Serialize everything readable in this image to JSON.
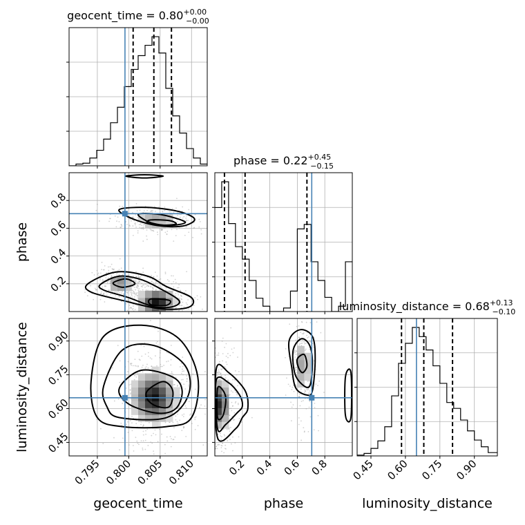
{
  "chart_data": {
    "type": "corner",
    "parameters": [
      "geocent_time",
      "phase",
      "luminosity_distance"
    ],
    "axis_labels": {
      "x": [
        "geocent_time",
        "phase",
        "luminosity_distance"
      ],
      "y": [
        "phase",
        "luminosity_distance"
      ]
    },
    "ranges": {
      "geocent_time": [
        0.7905,
        0.8125
      ],
      "phase": [
        0.0,
        1.0
      ],
      "luminosity_distance": [
        0.39,
        1.0
      ]
    },
    "ticks": {
      "geocent_time": [
        0.795,
        0.8,
        0.805,
        0.81
      ],
      "phase": [
        0.2,
        0.4,
        0.6,
        0.8
      ],
      "luminosity_distance": [
        0.45,
        0.6,
        0.75,
        0.9
      ]
    },
    "tick_labels": {
      "geocent_time": [
        "0.795",
        "0.800",
        "0.805",
        "0.810"
      ],
      "phase": [
        "0.2",
        "0.4",
        "0.6",
        "0.8"
      ],
      "luminosity_distance": [
        "0.45",
        "0.60",
        "0.75",
        "0.90"
      ]
    },
    "truths": {
      "geocent_time": 0.7994,
      "phase": 0.705,
      "luminosity_distance": 0.648
    },
    "titles": {
      "geocent_time": {
        "prefix": "geocent_time = 0.80",
        "plus": "+0.00",
        "minus": "−0.00"
      },
      "phase": {
        "prefix": "phase = 0.22",
        "plus": "+0.45",
        "minus": "−0.15"
      },
      "luminosity_distance": {
        "prefix": "luminosity_distance = 0.68",
        "plus": "+0.13",
        "minus": "−0.10"
      }
    },
    "quantiles": {
      "geocent_time": [
        0.8007,
        0.804,
        0.8068
      ],
      "phase": [
        0.07,
        0.22,
        0.67
      ],
      "luminosity_distance": [
        0.583,
        0.68,
        0.805
      ]
    },
    "histograms": {
      "geocent_time": {
        "edges": [
          0.7905,
          0.7916,
          0.7927,
          0.7938,
          0.7949,
          0.796,
          0.7971,
          0.7982,
          0.7993,
          0.8004,
          0.8015,
          0.8026,
          0.8037,
          0.8048,
          0.8059,
          0.807,
          0.8081,
          0.8092,
          0.8103,
          0.8114,
          0.8125
        ],
        "counts": [
          0,
          2,
          3,
          9,
          18,
          31,
          50,
          68,
          92,
          112,
          128,
          140,
          150,
          131,
          90,
          58,
          38,
          20,
          9,
          2
        ]
      },
      "phase": {
        "edges": [
          0.0,
          0.05,
          0.1,
          0.15,
          0.2,
          0.25,
          0.3,
          0.35,
          0.4,
          0.45,
          0.5,
          0.55,
          0.6,
          0.65,
          0.7,
          0.75,
          0.8,
          0.85,
          0.9,
          0.95,
          1.0
        ],
        "counts": [
          117,
          146,
          99,
          73,
          59,
          35,
          15,
          6,
          0,
          0,
          4,
          23,
          93,
          98,
          56,
          35,
          16,
          0,
          6,
          56
        ]
      },
      "luminosity_distance": {
        "edges": [
          0.39,
          0.42,
          0.45,
          0.48,
          0.51,
          0.54,
          0.57,
          0.6,
          0.63,
          0.66,
          0.69,
          0.72,
          0.75,
          0.78,
          0.81,
          0.84,
          0.87,
          0.9,
          0.93,
          0.96,
          1.0
        ],
        "counts": [
          1,
          3,
          9,
          18,
          35,
          72,
          111,
          135,
          154,
          143,
          127,
          108,
          87,
          64,
          57,
          43,
          30,
          19,
          11,
          4
        ]
      }
    },
    "contours": {
      "phase_vs_geocent_time": [
        [
          [
            0.7995,
            0.975
          ],
          [
            0.8025,
            0.985
          ],
          [
            0.8055,
            0.975
          ],
          [
            0.8025,
            0.962
          ]
        ],
        [
          [
            0.7985,
            0.735
          ],
          [
            0.803,
            0.75
          ],
          [
            0.808,
            0.72
          ],
          [
            0.8105,
            0.665
          ],
          [
            0.8085,
            0.615
          ],
          [
            0.8045,
            0.62
          ],
          [
            0.8005,
            0.67
          ]
        ],
        [
          [
            0.8015,
            0.7
          ],
          [
            0.8045,
            0.702
          ],
          [
            0.8075,
            0.672
          ],
          [
            0.809,
            0.64
          ],
          [
            0.8065,
            0.62
          ],
          [
            0.8035,
            0.64
          ]
        ],
        [
          [
            0.8035,
            0.66
          ],
          [
            0.8065,
            0.655
          ],
          [
            0.8075,
            0.63
          ],
          [
            0.805,
            0.622
          ],
          [
            0.803,
            0.638
          ]
        ],
        [
          [
            0.7935,
            0.2
          ],
          [
            0.798,
            0.285
          ],
          [
            0.803,
            0.255
          ],
          [
            0.806,
            0.18
          ],
          [
            0.81,
            0.1
          ],
          [
            0.8095,
            0.03
          ],
          [
            0.805,
            0.02
          ],
          [
            0.799,
            0.08
          ],
          [
            0.794,
            0.14
          ]
        ],
        [
          [
            0.7955,
            0.195
          ],
          [
            0.7985,
            0.255
          ],
          [
            0.802,
            0.23
          ],
          [
            0.805,
            0.165
          ],
          [
            0.808,
            0.08
          ],
          [
            0.807,
            0.035
          ],
          [
            0.804,
            0.035
          ],
          [
            0.8,
            0.1
          ],
          [
            0.796,
            0.155
          ]
        ],
        [
          [
            0.7975,
            0.205
          ],
          [
            0.7995,
            0.235
          ],
          [
            0.801,
            0.2
          ],
          [
            0.799,
            0.175
          ]
        ],
        [
          [
            0.8035,
            0.09
          ],
          [
            0.8065,
            0.08
          ],
          [
            0.806,
            0.045
          ],
          [
            0.8035,
            0.05
          ]
        ]
      ],
      "luminosity_distance_vs_phase": [
        [
          [
            0.01,
            0.775
          ],
          [
            0.1,
            0.76
          ],
          [
            0.22,
            0.68
          ],
          [
            0.24,
            0.6
          ],
          [
            0.2,
            0.56
          ],
          [
            0.15,
            0.51
          ],
          [
            0.02,
            0.47
          ]
        ],
        [
          [
            0.01,
            0.725
          ],
          [
            0.1,
            0.715
          ],
          [
            0.18,
            0.66
          ],
          [
            0.2,
            0.61
          ],
          [
            0.16,
            0.58
          ],
          [
            0.08,
            0.53
          ],
          [
            0.02,
            0.51
          ]
        ],
        [
          [
            0.02,
            0.69
          ],
          [
            0.06,
            0.68
          ],
          [
            0.08,
            0.64
          ],
          [
            0.06,
            0.57
          ],
          [
            0.02,
            0.56
          ]
        ],
        [
          [
            0.54,
            0.9
          ],
          [
            0.62,
            0.95
          ],
          [
            0.71,
            0.92
          ],
          [
            0.73,
            0.82
          ],
          [
            0.71,
            0.68
          ],
          [
            0.67,
            0.66
          ],
          [
            0.59,
            0.69
          ],
          [
            0.56,
            0.78
          ]
        ],
        [
          [
            0.57,
            0.86
          ],
          [
            0.63,
            0.91
          ],
          [
            0.69,
            0.88
          ],
          [
            0.71,
            0.8
          ],
          [
            0.69,
            0.7
          ],
          [
            0.63,
            0.71
          ],
          [
            0.58,
            0.76
          ]
        ],
        [
          [
            0.6,
            0.82
          ],
          [
            0.65,
            0.84
          ],
          [
            0.67,
            0.79
          ],
          [
            0.64,
            0.76
          ],
          [
            0.61,
            0.78
          ]
        ],
        [
          [
            0.95,
            0.74
          ],
          [
            0.99,
            0.76
          ],
          [
            0.99,
            0.56
          ],
          [
            0.95,
            0.57
          ]
        ]
      ],
      "luminosity_distance_vs_geocent_time": [
        [
          [
            0.794,
            0.72
          ],
          [
            0.796,
            0.92
          ],
          [
            0.802,
            0.97
          ],
          [
            0.808,
            0.91
          ],
          [
            0.811,
            0.74
          ],
          [
            0.81,
            0.56
          ],
          [
            0.806,
            0.52
          ],
          [
            0.799,
            0.52
          ],
          [
            0.795,
            0.56
          ]
        ],
        [
          [
            0.796,
            0.7
          ],
          [
            0.799,
            0.86
          ],
          [
            0.804,
            0.88
          ],
          [
            0.809,
            0.79
          ],
          [
            0.8095,
            0.66
          ],
          [
            0.806,
            0.56
          ],
          [
            0.7985,
            0.56
          ],
          [
            0.7965,
            0.61
          ]
        ],
        [
          [
            0.7985,
            0.69
          ],
          [
            0.802,
            0.77
          ],
          [
            0.807,
            0.74
          ],
          [
            0.8085,
            0.68
          ],
          [
            0.8075,
            0.6
          ],
          [
            0.8045,
            0.58
          ],
          [
            0.8,
            0.62
          ]
        ],
        [
          [
            0.803,
            0.68
          ],
          [
            0.8055,
            0.72
          ],
          [
            0.807,
            0.68
          ],
          [
            0.8065,
            0.61
          ],
          [
            0.8045,
            0.61
          ],
          [
            0.803,
            0.64
          ]
        ]
      ]
    },
    "density_blobs": {
      "phase_vs_geocent_time": [
        {
          "x": 0.8045,
          "y": 0.07,
          "sx": 0.0015,
          "sy": 0.05,
          "w": 1.0
        },
        {
          "x": 0.7985,
          "y": 0.205,
          "sx": 0.0012,
          "sy": 0.035,
          "w": 0.5
        },
        {
          "x": 0.8045,
          "y": 0.655,
          "sx": 0.002,
          "sy": 0.03,
          "w": 0.4
        }
      ],
      "luminosity_distance_vs_phase": [
        {
          "x": 0.03,
          "y": 0.62,
          "sx": 0.04,
          "sy": 0.06,
          "w": 0.9
        },
        {
          "x": 0.64,
          "y": 0.79,
          "sx": 0.03,
          "sy": 0.07,
          "w": 0.4
        }
      ],
      "luminosity_distance_vs_geocent_time": [
        {
          "x": 0.804,
          "y": 0.65,
          "sx": 0.0018,
          "sy": 0.06,
          "w": 1.0
        }
      ]
    }
  }
}
